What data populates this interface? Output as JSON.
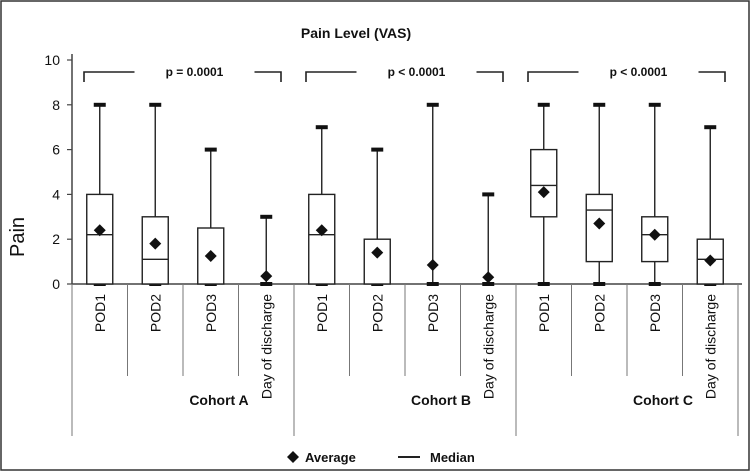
{
  "chart_data": {
    "type": "boxplot",
    "title": "Pain Level (VAS)",
    "ylabel": "Pain",
    "ylim": [
      0,
      10
    ],
    "yticks": [
      "0",
      "2",
      "4",
      "6",
      "8",
      "10"
    ],
    "groups": [
      {
        "label": "Cohort A",
        "p_value": "p = 0.0001",
        "categories": [
          {
            "label": "POD1",
            "min": 0,
            "q1": 0,
            "median": 2.2,
            "q3": 4,
            "max": 8,
            "average": 2.4
          },
          {
            "label": "POD2",
            "min": 0,
            "q1": 0,
            "median": 1.1,
            "q3": 3,
            "max": 8,
            "average": 1.8
          },
          {
            "label": "POD3",
            "min": 0,
            "q1": 0,
            "median": 0,
            "q3": 2.5,
            "max": 6,
            "average": 1.25
          },
          {
            "label": "Day of discharge",
            "min": 0,
            "q1": 0,
            "median": 0,
            "q3": 0,
            "max": 3,
            "average": 0.35
          }
        ]
      },
      {
        "label": "Cohort B",
        "p_value": "p < 0.0001",
        "categories": [
          {
            "label": "POD1",
            "min": 0,
            "q1": 0,
            "median": 2.2,
            "q3": 4,
            "max": 7,
            "average": 2.4
          },
          {
            "label": "POD2",
            "min": 0,
            "q1": 0,
            "median": 0,
            "q3": 2,
            "max": 6,
            "average": 1.4
          },
          {
            "label": "POD3",
            "min": 0,
            "q1": 0,
            "median": 0,
            "q3": 0,
            "max": 8,
            "average": 0.85
          },
          {
            "label": "Day of discharge",
            "min": 0,
            "q1": 0,
            "median": 0,
            "q3": 0,
            "max": 4,
            "average": 0.3
          }
        ]
      },
      {
        "label": "Cohort C",
        "p_value": "p < 0.0001",
        "categories": [
          {
            "label": "POD1",
            "min": 0,
            "q1": 3,
            "median": 4.4,
            "q3": 6,
            "max": 8,
            "average": 4.1
          },
          {
            "label": "POD2",
            "min": 0,
            "q1": 1,
            "median": 3.3,
            "q3": 4,
            "max": 8,
            "average": 2.7
          },
          {
            "label": "POD3",
            "min": 0,
            "q1": 1,
            "median": 2.2,
            "q3": 3,
            "max": 8,
            "average": 2.2
          },
          {
            "label": "Day of discharge",
            "min": 0,
            "q1": 0,
            "median": 1.1,
            "q3": 2,
            "max": 7,
            "average": 1.05
          }
        ]
      }
    ],
    "legend": {
      "position": "bottom",
      "items": [
        {
          "marker": "diamond",
          "label": "Average"
        },
        {
          "marker": "line",
          "label": "Median"
        }
      ]
    },
    "grid": false
  }
}
